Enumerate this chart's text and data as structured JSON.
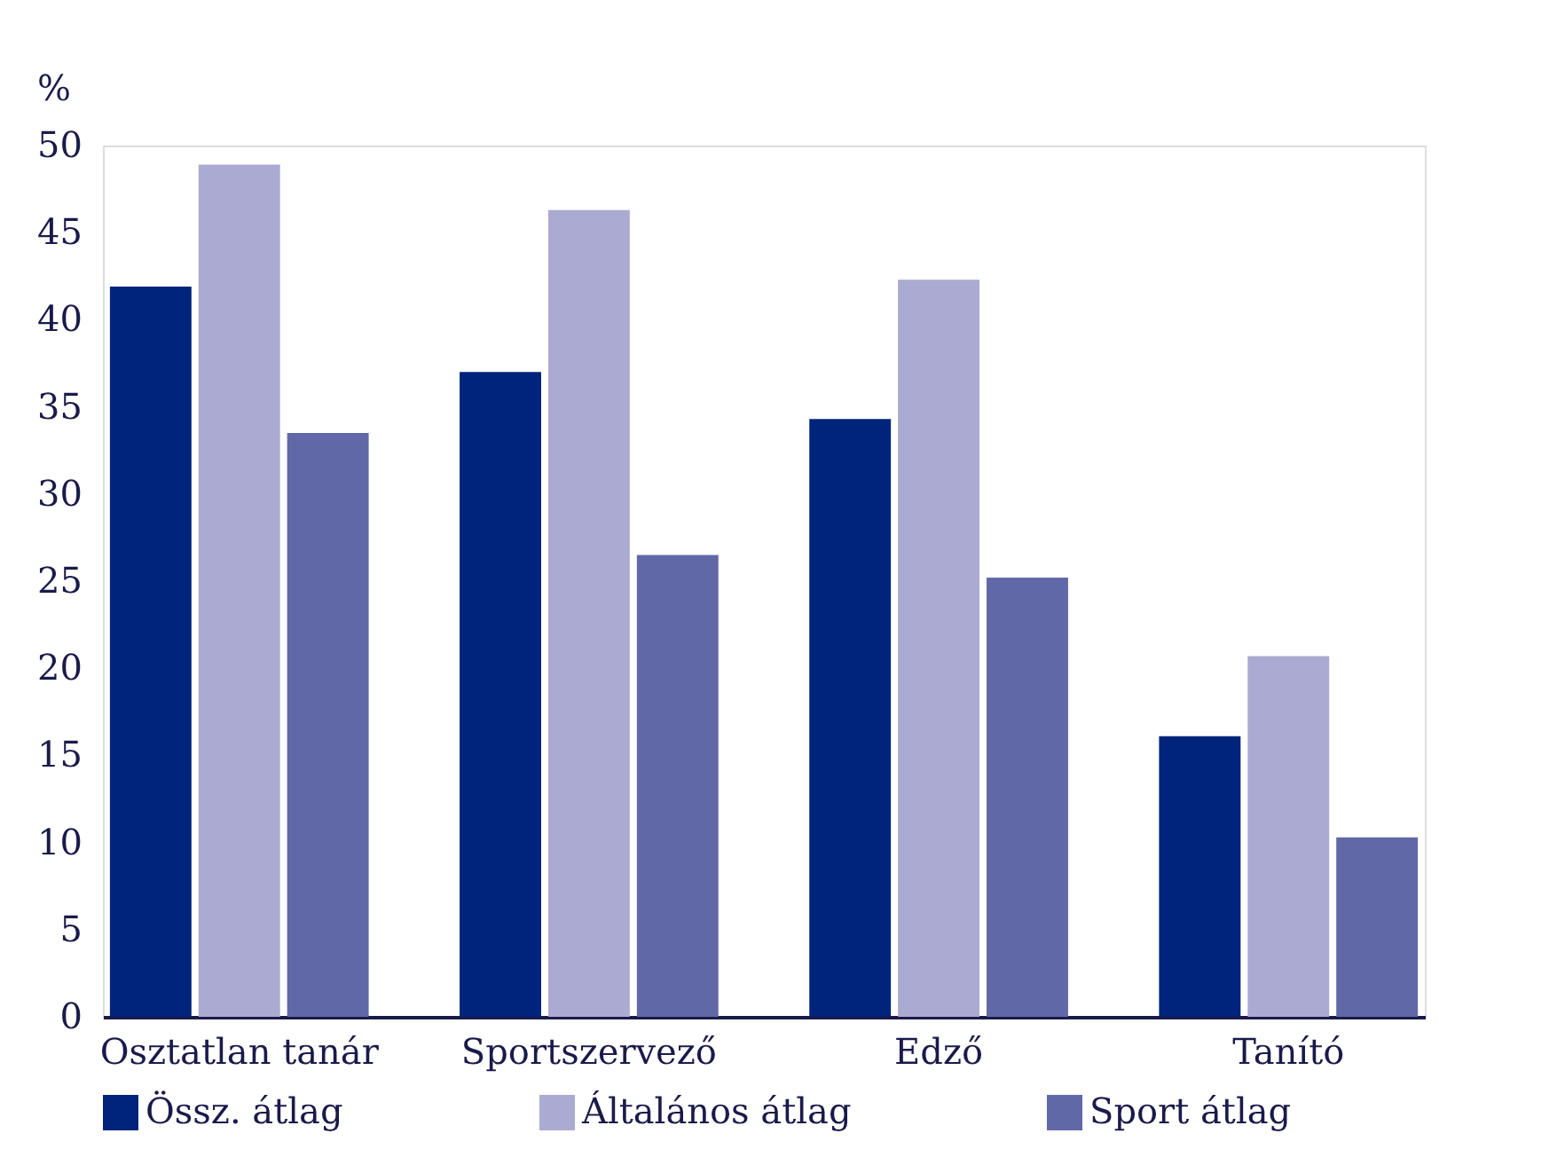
{
  "chart_data": {
    "type": "bar",
    "ylabel": "%",
    "categories": [
      "Osztatlan tanár",
      "Sportszervező",
      "Edző",
      "Tanító"
    ],
    "series": [
      {
        "name": "Össz. átlag",
        "color": "#00247a",
        "values": [
          41.9,
          37.0,
          34.3,
          16.1
        ]
      },
      {
        "name": "Általános átlag",
        "color": "#aaaad2",
        "values": [
          48.9,
          46.3,
          42.3,
          20.7
        ]
      },
      {
        "name": "Sport átlag",
        "color": "#6068a8",
        "values": [
          33.5,
          26.5,
          25.2,
          10.3
        ]
      }
    ],
    "ylim": [
      0,
      50
    ],
    "yticks": [
      0,
      5,
      10,
      15,
      20,
      25,
      30,
      35,
      40,
      45,
      50
    ],
    "grid": false,
    "legend": "bottom"
  }
}
